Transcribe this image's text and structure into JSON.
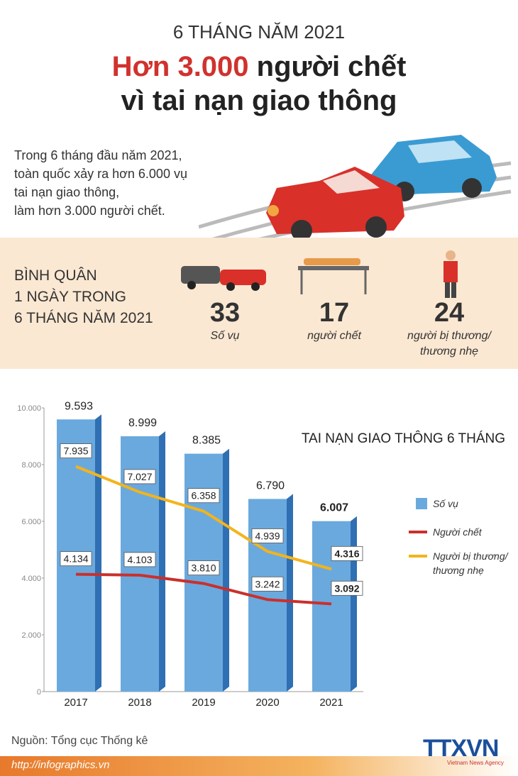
{
  "header": {
    "kicker": "6 THÁNG NĂM 2021",
    "title_highlight": "Hơn 3.000",
    "title_rest": "người chết",
    "title_line2": "vì tai nạn giao thông"
  },
  "intro": [
    "Trong 6 tháng đầu năm 2021,",
    "toàn quốc xảy ra hơn 6.000 vụ",
    "tai nạn giao thông,",
    "làm hơn 3.000 người chết."
  ],
  "daily": {
    "label": [
      "BÌNH QUÂN",
      "1 NGÀY TRONG",
      "6 THÁNG NĂM 2021"
    ],
    "stats": [
      {
        "value": 33,
        "label": "Số vụ"
      },
      {
        "value": 17,
        "label": "người chết"
      },
      {
        "value": 24,
        "label": "người bị thương/ thương nhẹ"
      }
    ]
  },
  "chart_data": {
    "type": "bar",
    "title": "TAI NẠN GIAO THÔNG 6 THÁNG",
    "categories": [
      "2017",
      "2018",
      "2019",
      "2020",
      "2021"
    ],
    "ylim": [
      0,
      10000
    ],
    "yticks": [
      0,
      {
        "value": 2000,
        "label": "2.000"
      },
      {
        "value": 4000,
        "label": "4.000"
      },
      {
        "value": 6000,
        "label": "6.000"
      },
      {
        "value": 8000,
        "label": "8.000"
      },
      {
        "value": 10000,
        "label": "10.000"
      }
    ],
    "series": [
      {
        "name": "Số vụ",
        "type": "bar",
        "color": "#6aa9de",
        "values": [
          9593,
          8999,
          8385,
          6790,
          6007
        ],
        "value_labels": [
          "9.593",
          "8.999",
          "8.385",
          "6.790",
          "6.007"
        ]
      },
      {
        "name": "Người chết",
        "type": "line",
        "color": "#c9302c",
        "values": [
          4134,
          4103,
          3810,
          3242,
          3092
        ],
        "value_labels": [
          "4.134",
          "4.103",
          "3.810",
          "3.242",
          "3.092"
        ]
      },
      {
        "name": "Người bị thương/ thương nhẹ",
        "type": "line",
        "color": "#f3b41b",
        "values": [
          7935,
          7027,
          6358,
          4939,
          4316
        ],
        "value_labels": [
          "7.935",
          "7.027",
          "6.358",
          "4.939",
          "4.316"
        ]
      }
    ]
  },
  "footer": {
    "source": "Nguồn: Tổng cục Thống kê",
    "url": "http://infographics.vn",
    "logo": "TTXVN",
    "logo_sub": "Vietnam News Agency"
  }
}
